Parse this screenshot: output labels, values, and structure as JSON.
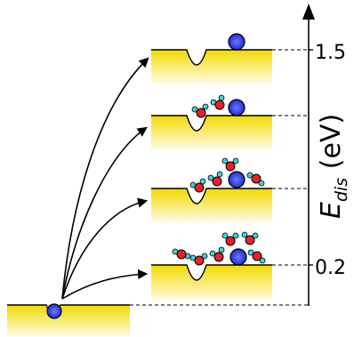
{
  "axis": {
    "label_main": "E",
    "label_sub": "dis",
    "label_unit": " (eV)",
    "tick_top": "1.5",
    "tick_bottom": "0.2"
  },
  "colors": {
    "slab_top": "#f2da00",
    "slab_bottom": "#fffbe6",
    "adatom": "#1f2bd6",
    "oxygen": "#e8202a",
    "hydrogen": "#3fd2d2"
  },
  "water_counts": [
    0,
    2,
    4,
    6
  ]
}
